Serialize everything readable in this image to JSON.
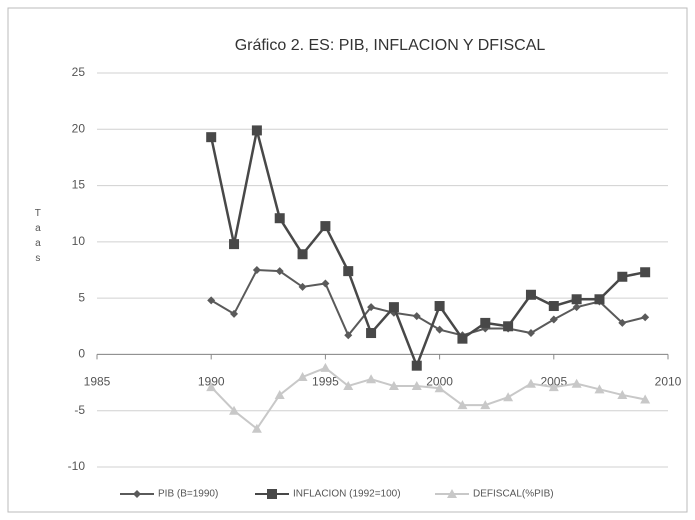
{
  "chart_data": {
    "type": "line",
    "title": "Gráfico 2. ES: PIB, INFLACION Y DFISCAL",
    "ylabel": "Taas",
    "x": [
      1990,
      1991,
      1992,
      1993,
      1994,
      1995,
      1996,
      1997,
      1998,
      1999,
      2000,
      2001,
      2002,
      2003,
      2004,
      2005,
      2006,
      2007,
      2008,
      2009
    ],
    "series": [
      {
        "name": "PIB (B=1990)",
        "color": "#5a5a5a",
        "marker": "diamond",
        "values": [
          4.8,
          3.6,
          7.5,
          7.4,
          6.0,
          6.3,
          1.7,
          4.2,
          3.7,
          3.4,
          2.2,
          1.7,
          2.3,
          2.3,
          1.9,
          3.1,
          4.2,
          4.7,
          2.8,
          3.3
        ]
      },
      {
        "name": "INFLACION (1992=100)",
        "color": "#484848",
        "marker": "square",
        "values": [
          19.3,
          9.8,
          19.9,
          12.1,
          8.9,
          11.4,
          7.4,
          1.9,
          4.2,
          -1.0,
          4.3,
          1.4,
          2.8,
          2.5,
          5.3,
          4.3,
          4.9,
          4.9,
          6.9,
          7.3
        ]
      },
      {
        "name": "DEFISCAL(%PIB)",
        "color": "#c8c8c8",
        "marker": "triangle",
        "values": [
          -2.9,
          -5.0,
          -6.6,
          -3.6,
          -2.0,
          -1.2,
          -2.8,
          -2.2,
          -2.8,
          -2.8,
          -3.0,
          -4.5,
          -4.5,
          -3.8,
          -2.6,
          -2.9,
          -2.6,
          -3.1,
          -3.6,
          -4.0
        ]
      }
    ],
    "xlim": [
      1985,
      2010
    ],
    "xticks": [
      1985,
      1990,
      1995,
      2000,
      2005,
      2010
    ],
    "ylim": [
      -10,
      25
    ],
    "yticks": [
      -10,
      -5,
      0,
      5,
      10,
      15,
      20,
      25
    ],
    "grid": true,
    "legend": "bottom"
  }
}
